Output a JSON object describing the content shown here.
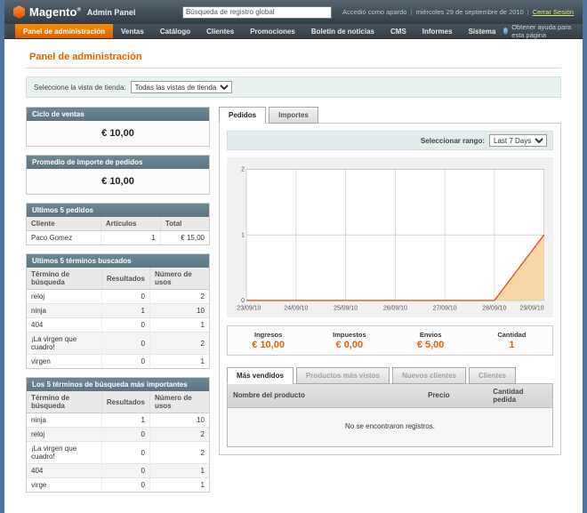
{
  "header": {
    "brand": "Magento",
    "trademark": "®",
    "brand_suffix": "Admin Panel",
    "search_value": "Búsqueda de registro global",
    "logged_in": "Accedió como apardo",
    "sep": "|",
    "date": "miércoles 29 de septiembre de 2010",
    "logout": "Cerrar Sesión"
  },
  "nav": {
    "items": [
      "Panel de administración",
      "Ventas",
      "Catálogo",
      "Clientes",
      "Promociones",
      "Boletín de noticias",
      "CMS",
      "Informes",
      "Sistema"
    ],
    "help": "Obtener ayuda para esta página"
  },
  "page": {
    "title": "Panel de administración",
    "store_label": "Seleccione la vista de tienda:",
    "store_value": "Todas las vistas de tienda"
  },
  "sidebar": {
    "sales_cycle": {
      "title": "Ciclo de ventas",
      "value": "€ 10,00"
    },
    "avg_order": {
      "title": "Promedio de importe de pedidos",
      "value": "€ 10,00"
    },
    "last_orders": {
      "title": "Ultimos 5 pedidos",
      "columns": [
        "Cliente",
        "Artículos",
        "Total"
      ],
      "rows": [
        [
          "Paco Gomez",
          "1",
          "€ 15,00"
        ]
      ]
    },
    "last_terms": {
      "title": "Ultimos 5 términos buscados",
      "columns": [
        "Término de búsqueda",
        "Resultados",
        "Número de usos"
      ],
      "rows": [
        [
          "reloj",
          "0",
          "2"
        ],
        [
          "ninja",
          "1",
          "10"
        ],
        [
          "404",
          "0",
          "1"
        ],
        [
          "¡La virgen que cuadro!",
          "0",
          "2"
        ],
        [
          "virgen",
          "0",
          "1"
        ]
      ]
    },
    "top_terms": {
      "title": "Los 5 términos de búsqueda más importantes",
      "columns": [
        "Término de búsqueda",
        "Resultados",
        "Número de usos"
      ],
      "rows": [
        [
          "ninja",
          "1",
          "10"
        ],
        [
          "reloj",
          "0",
          "2"
        ],
        [
          "¡La virgen que cuadro!",
          "0",
          "2"
        ],
        [
          "404",
          "0",
          "1"
        ],
        [
          "virge",
          "0",
          "1"
        ]
      ]
    }
  },
  "main": {
    "tabs": [
      {
        "label": "Pedidos"
      },
      {
        "label": "Importes"
      }
    ],
    "range_label": "Seleccionar rango:",
    "range_value": "Last 7 Days",
    "stats": [
      {
        "label": "Ingresos",
        "value": "€ 10,00"
      },
      {
        "label": "Impuestos",
        "value": "€ 0,00"
      },
      {
        "label": "Envios",
        "value": "€ 5,00"
      },
      {
        "label": "Cantidad",
        "value": "1"
      }
    ],
    "bottom_tabs": [
      {
        "label": "Más vendidos"
      },
      {
        "label": "Productos más vistos"
      },
      {
        "label": "Nuevos clientes"
      },
      {
        "label": "Clientes"
      }
    ],
    "products_table": {
      "columns": [
        "Nombre del producto",
        "Precio",
        "Cantidad pedida"
      ],
      "empty_text": "No se encontraron registros."
    }
  },
  "chart_data": {
    "type": "area",
    "title": "Pedidos (Last 7 Days)",
    "x": [
      "23/09/10",
      "24/09/10",
      "25/09/10",
      "26/09/10",
      "27/09/10",
      "28/09/10",
      "29/09/10"
    ],
    "series": [
      {
        "name": "Pedidos",
        "values": [
          0,
          0,
          0,
          0,
          0,
          0,
          1
        ]
      }
    ],
    "xlabel": "",
    "ylabel": "",
    "ylim": [
      0,
      2
    ],
    "yticks": [
      0,
      1,
      2
    ],
    "grid": true,
    "legend": "none",
    "line_color": "#D9552B",
    "fill_color": "#F7D6A8"
  },
  "colors": {
    "accent_orange": "#E85D00",
    "panel_header": "#66818F",
    "header_bg": "#3A4A56",
    "nav_bg": "#40494F",
    "body_bg": "#50719A",
    "logout_link": "#DDE37D"
  }
}
